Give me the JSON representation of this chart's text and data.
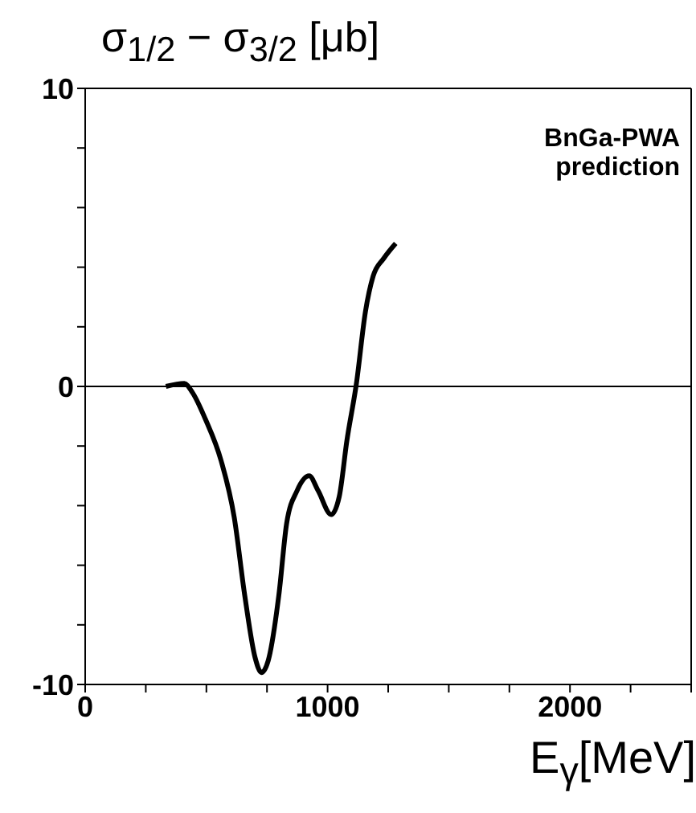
{
  "chart_data": {
    "type": "line",
    "title": "σ$_{1/2}$ − σ$_{3/2}$ [μb]",
    "xlabel": "E$_{γ}$[MeV]",
    "annotations": [
      "BnGa-PWA prediction"
    ],
    "x": [
      333,
      409,
      442,
      496,
      561,
      615,
      658,
      701,
      727,
      755,
      799,
      831,
      874,
      924,
      961,
      1015,
      1048,
      1080,
      1119,
      1156,
      1188,
      1232,
      1281
    ],
    "series": [
      {
        "color": "#000000",
        "values": [
          0,
          0.1,
          -0.2,
          -1.1,
          -2.5,
          -4.4,
          -7.0,
          -9.1,
          -9.6,
          -9.2,
          -7.0,
          -4.6,
          -3.5,
          -3.0,
          -3.5,
          -4.3,
          -3.7,
          -1.8,
          0.1,
          2.5,
          3.7,
          4.3,
          4.8
        ]
      }
    ],
    "xlim": [
      0,
      2500
    ],
    "xticks": [
      0,
      {
        "value": 250,
        "label": null
      },
      {
        "value": 500,
        "label": null
      },
      {
        "value": 750,
        "label": null
      },
      1000,
      {
        "value": 1250,
        "label": null
      },
      {
        "value": 1500,
        "label": null
      },
      {
        "value": 1750,
        "label": null
      },
      2000,
      {
        "value": 2250,
        "label": null
      },
      {
        "value": 2500,
        "label": null
      }
    ],
    "ylim": [
      -10,
      10
    ],
    "yticks": [
      -10,
      {
        "value": -8,
        "label": null
      },
      {
        "value": -6,
        "label": null
      },
      {
        "value": -4,
        "label": null
      },
      {
        "value": -2,
        "label": null
      },
      0,
      {
        "value": 2,
        "label": null
      },
      {
        "value": 4,
        "label": null
      },
      {
        "value": 6,
        "label": null
      },
      {
        "value": 8,
        "label": null
      },
      10
    ],
    "ref_lines": [
      {
        "axis": "y",
        "value": 0,
        "color": "#000000"
      }
    ],
    "marker": "none",
    "line_style": "solid"
  }
}
